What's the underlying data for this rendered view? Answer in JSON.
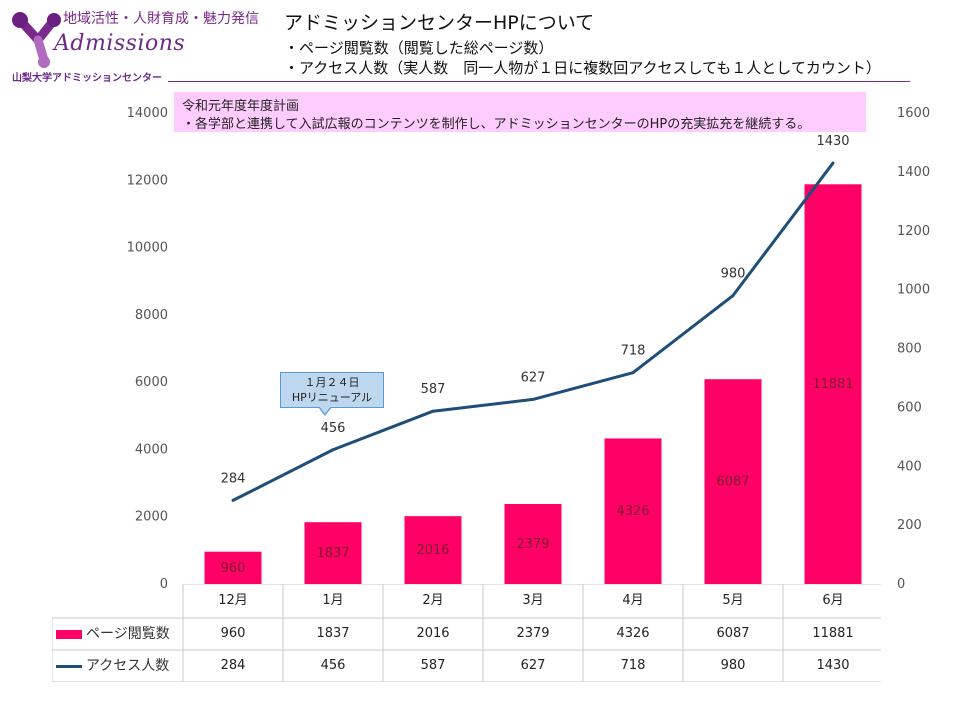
{
  "logo": {
    "tagline": "地域活性・人財育成・魅力発信",
    "wordmark": "Admissions",
    "subtitle": "山梨大学アドミッションセンター"
  },
  "header": {
    "title": "アドミッションセンターHPについて",
    "line1": "・ページ閲覧数（閲覧した総ページ数）",
    "line2": "・アクセス人数（実人数　同一人物が１日に複数回アクセスしても１人としてカウント）"
  },
  "plan": {
    "title": "令和元年度年度計画",
    "text": "・各学部と連携して入試広報のコンテンツを制作し、アドミッションセンターのHPの充実拡充を継続する。"
  },
  "callout": {
    "line1": "１月２４日",
    "line2": "HPリニューアル"
  },
  "colors": {
    "bar": "#ff0066",
    "line": "#1f4e79",
    "plan_bg": "#ffccff",
    "callout_bg": "#bdd7ee"
  },
  "chart_data": {
    "type": "bar",
    "categories": [
      "12月",
      "1月",
      "2月",
      "3月",
      "4月",
      "5月",
      "6月"
    ],
    "series": [
      {
        "name": "ページ閲覧数",
        "type": "bar",
        "axis": "left",
        "values": [
          960,
          1837,
          2016,
          2379,
          4326,
          6087,
          11881
        ]
      },
      {
        "name": "アクセス人数",
        "type": "line",
        "axis": "right",
        "values": [
          284,
          456,
          587,
          627,
          718,
          980,
          1430
        ]
      }
    ],
    "left_axis": {
      "min": 0,
      "max": 14000,
      "ticks": [
        "0",
        "2000",
        "4000",
        "6000",
        "8000",
        "10000",
        "12000",
        "14000"
      ]
    },
    "right_axis": {
      "min": 0,
      "max": 1600,
      "ticks": [
        "0",
        "200",
        "400",
        "600",
        "800",
        "1000",
        "1200",
        "1400",
        "1600"
      ]
    },
    "grid": false,
    "legend": "data-table"
  }
}
